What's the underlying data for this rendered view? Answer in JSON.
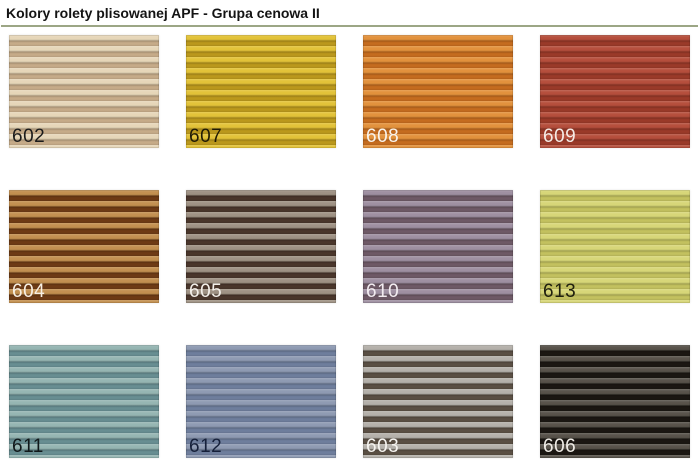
{
  "page": {
    "title": "Kolory rolety plisowanej APF - Grupa cenowa II"
  },
  "divider_color": "#9ca685",
  "swatches": [
    {
      "code": "602",
      "light": "#e6d6b8",
      "dark": "#c8ad8a",
      "label_color": "#1b1b1b"
    },
    {
      "code": "607",
      "light": "#e2c238",
      "dark": "#bd9a1c",
      "label_color": "#1f1a05"
    },
    {
      "code": "608",
      "light": "#e2913c",
      "dark": "#c76d1f",
      "label_color": "#f8f3ec"
    },
    {
      "code": "609",
      "light": "#b54e3c",
      "dark": "#9c3a29",
      "label_color": "#f5ebe6"
    },
    {
      "code": "604",
      "light": "#c28f4f",
      "dark": "#6f3b15",
      "label_color": "#f7efe3"
    },
    {
      "code": "605",
      "light": "#9e9183",
      "dark": "#4a362b",
      "label_color": "#f3efe9"
    },
    {
      "code": "610",
      "light": "#9e8fa1",
      "dark": "#6f5a67",
      "label_color": "#f2ecf0"
    },
    {
      "code": "613",
      "light": "#d7d677",
      "dark": "#c5c360",
      "label_color": "#20200e"
    },
    {
      "code": "611",
      "light": "#95b5b2",
      "dark": "#699094",
      "label_color": "#10181a"
    },
    {
      "code": "612",
      "light": "#8e9ab2",
      "dark": "#70809f",
      "label_color": "#16203a"
    },
    {
      "code": "603",
      "light": "#b4b0aa",
      "dark": "#5b5044",
      "label_color": "#f5f3ef"
    },
    {
      "code": "606",
      "light": "#57524a",
      "dark": "#1b1712",
      "label_color": "#efece6"
    }
  ]
}
